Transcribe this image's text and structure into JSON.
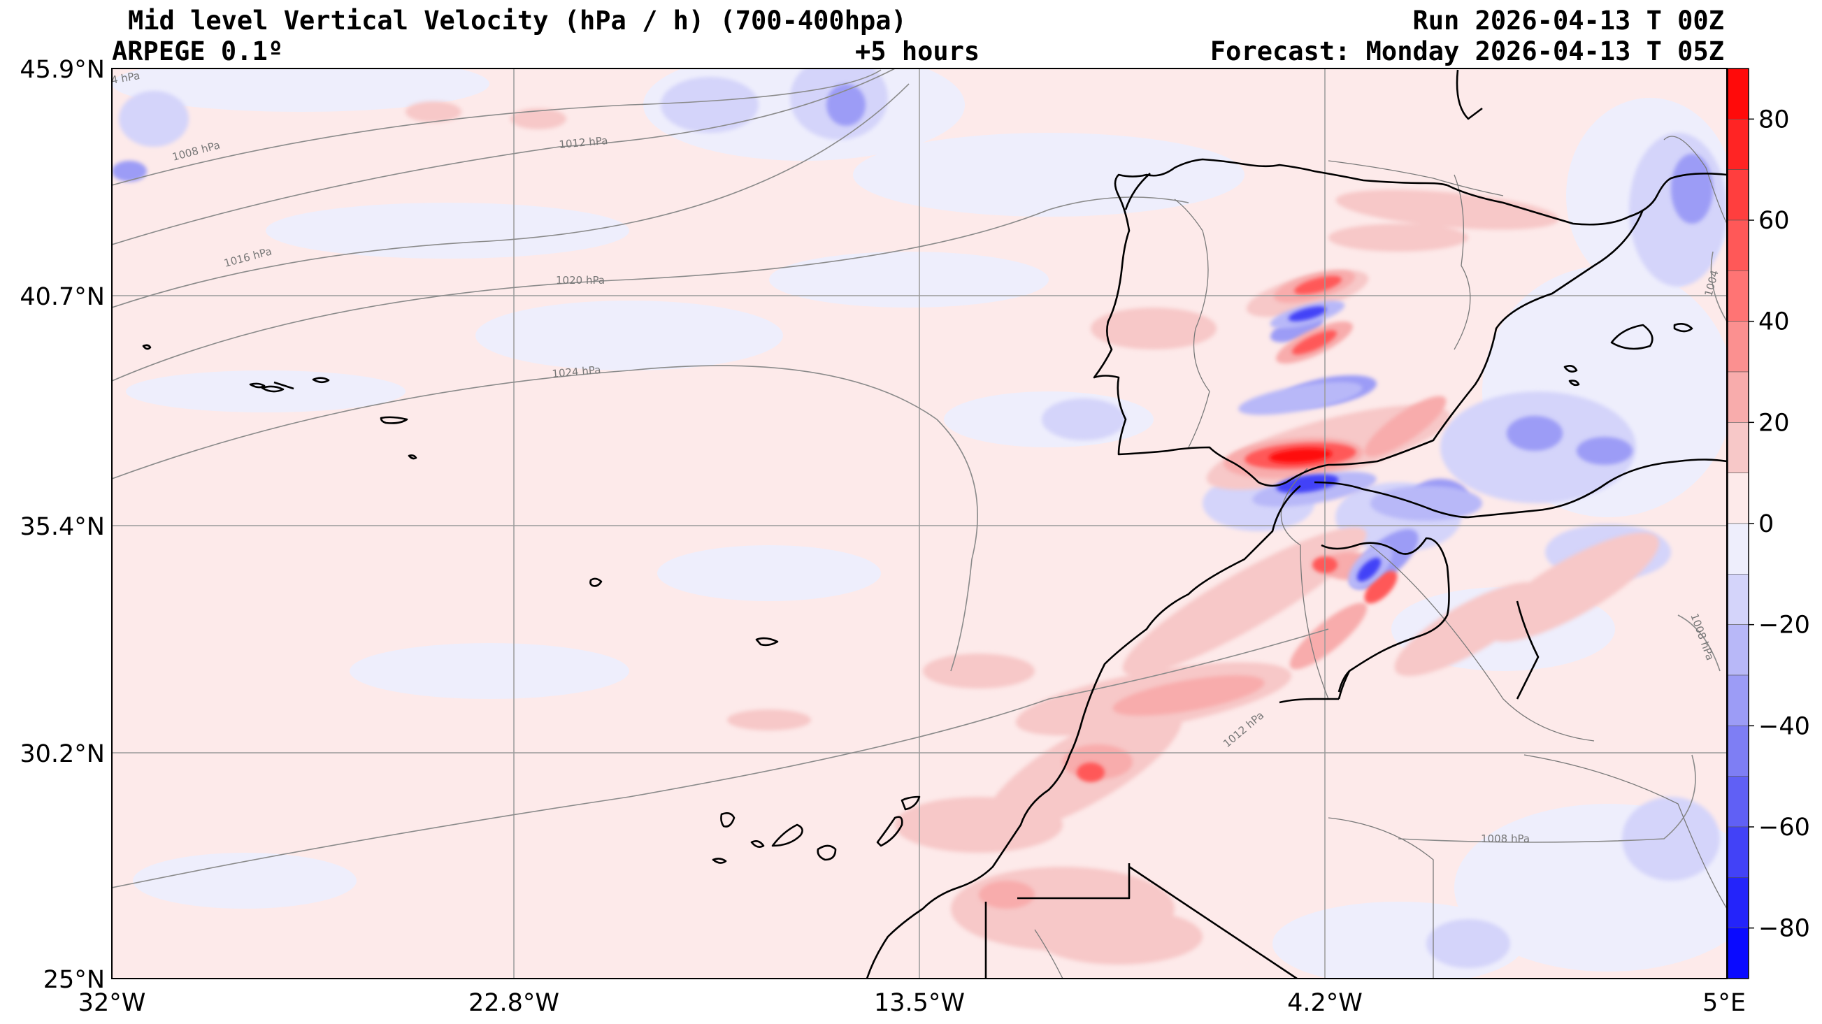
{
  "header": {
    "title": "Mid level Vertical Velocity (hPa / h)  (700-400hpa)",
    "model": "ARPEGE 0.1º",
    "lead_time": "+5 hours",
    "run": "Run 2026-04-13 T 00Z",
    "forecast": "Forecast: Monday 2026-04-13 T 05Z"
  },
  "map": {
    "lat_range": [
      25.0,
      45.9
    ],
    "lon_range": [
      -32.0,
      5.0
    ],
    "lat_ticks": [
      {
        "value": 45.9,
        "label": "45.9°N"
      },
      {
        "value": 40.7,
        "label": "40.7°N"
      },
      {
        "value": 35.4,
        "label": "35.4°N"
      },
      {
        "value": 30.2,
        "label": "30.2°N"
      },
      {
        "value": 25.0,
        "label": "25°N"
      }
    ],
    "lon_ticks": [
      {
        "value": -32.0,
        "label": "32°W"
      },
      {
        "value": -22.8,
        "label": "22.8°W"
      },
      {
        "value": -13.5,
        "label": "13.5°W"
      },
      {
        "value": -4.2,
        "label": "4.2°W"
      },
      {
        "value": 5.0,
        "label": "5°E"
      }
    ],
    "isobar_labels": [
      "4 hPa",
      "1008 hPa",
      "1012 hPa",
      "1016 hPa",
      "1020 hPa",
      "1024 hPa",
      "1012 hPa",
      "1008 hPa",
      "1008 hPa",
      "1004"
    ]
  },
  "colorbar": {
    "min": -90,
    "max": 90,
    "ticks": [
      {
        "value": 80,
        "label": "80"
      },
      {
        "value": 60,
        "label": "60"
      },
      {
        "value": 40,
        "label": "40"
      },
      {
        "value": 20,
        "label": "20"
      },
      {
        "value": 0,
        "label": "0"
      },
      {
        "value": -20,
        "label": "−20"
      },
      {
        "value": -40,
        "label": "−40"
      },
      {
        "value": -60,
        "label": "−60"
      },
      {
        "value": -80,
        "label": "−80"
      }
    ],
    "levels": [
      {
        "from": 80,
        "to": 90,
        "color": "#ff0a0a"
      },
      {
        "from": 70,
        "to": 80,
        "color": "#ff2424"
      },
      {
        "from": 60,
        "to": 70,
        "color": "#ff3e3e"
      },
      {
        "from": 50,
        "to": 60,
        "color": "#ff5858"
      },
      {
        "from": 40,
        "to": 50,
        "color": "#ff7474"
      },
      {
        "from": 30,
        "to": 40,
        "color": "#fb9090"
      },
      {
        "from": 20,
        "to": 30,
        "color": "#f8acac"
      },
      {
        "from": 10,
        "to": 20,
        "color": "#f7c8c8"
      },
      {
        "from": 0,
        "to": 10,
        "color": "#fdeaea"
      },
      {
        "from": -10,
        "to": 0,
        "color": "#eeeefc"
      },
      {
        "from": -20,
        "to": -10,
        "color": "#d4d4fa"
      },
      {
        "from": -30,
        "to": -20,
        "color": "#b8b8f8"
      },
      {
        "from": -40,
        "to": -30,
        "color": "#9c9cf6"
      },
      {
        "from": -50,
        "to": -40,
        "color": "#7e7ef4"
      },
      {
        "from": -60,
        "to": -50,
        "color": "#6060f5"
      },
      {
        "from": -70,
        "to": -60,
        "color": "#4242f7"
      },
      {
        "from": -80,
        "to": -70,
        "color": "#2424fa"
      },
      {
        "from": -90,
        "to": -80,
        "color": "#0a0aff"
      }
    ]
  }
}
